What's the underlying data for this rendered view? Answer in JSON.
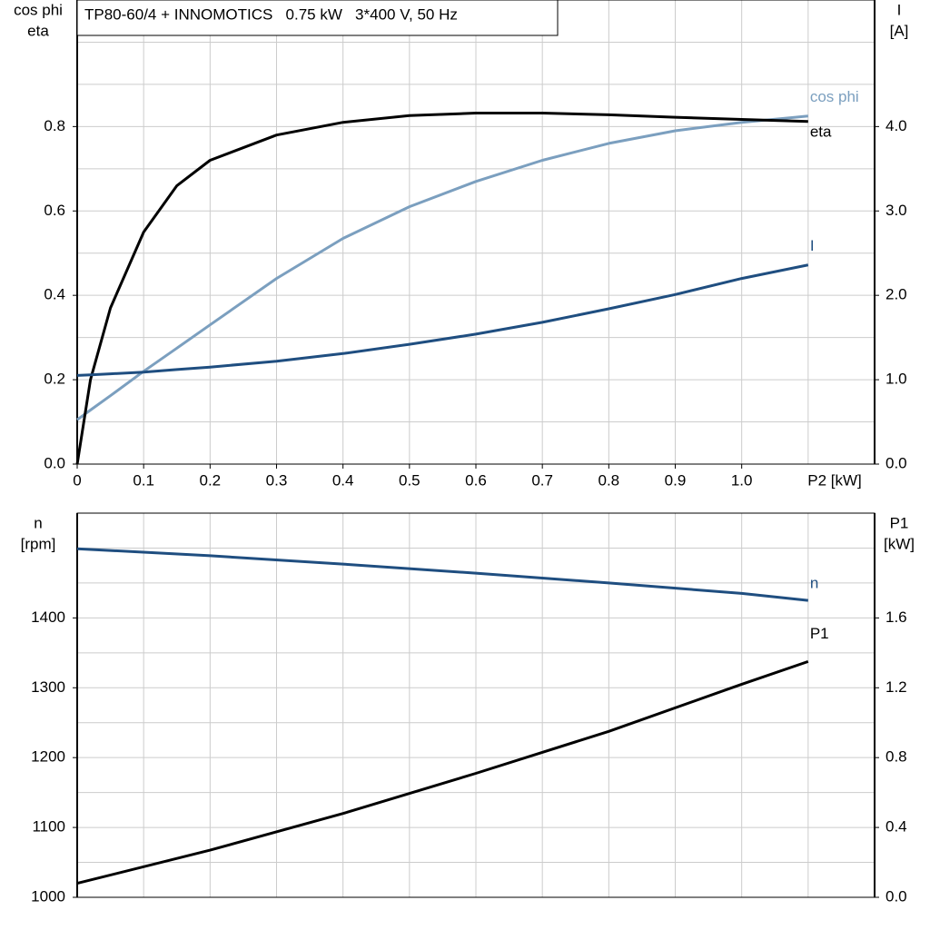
{
  "chart_data": [
    {
      "type": "line",
      "title": "TP80-60/4 + INNOMOTICS   0.75 kW   3*400 V, 50 Hz",
      "xlabel": "P2 [kW]",
      "ylabel": [
        "cos phi",
        "eta"
      ],
      "y2label": [
        "I",
        "[A]"
      ],
      "xlim": [
        0,
        1.2
      ],
      "xticks": [
        0,
        0.1,
        0.2,
        0.3,
        0.4,
        0.5,
        0.6,
        0.7,
        0.8,
        0.9,
        {
          "value": 1,
          "label": "1.0"
        }
      ],
      "xgrid": [
        0.1,
        0.2,
        0.3,
        0.4,
        0.5,
        0.6,
        0.7,
        0.8,
        0.9,
        1,
        1.1
      ],
      "ylim": [
        0,
        1.1
      ],
      "yticks": [
        {
          "value": 0,
          "label": "0.0"
        },
        0.2,
        0.4,
        0.6,
        0.8
      ],
      "ygrid": [
        0.1,
        0.3,
        0.5,
        0.7,
        0.9,
        1.0
      ],
      "y2lim": [
        0,
        5.5
      ],
      "y2ticks": [
        {
          "value": 0,
          "label": "0.0"
        },
        {
          "value": 1,
          "label": "1.0"
        },
        {
          "value": 2,
          "label": "2.0"
        },
        {
          "value": 3,
          "label": "3.0"
        },
        {
          "value": 4,
          "label": "4.0"
        }
      ],
      "grid": true,
      "x": [
        0,
        0.02,
        0.05,
        0.1,
        0.15,
        0.2,
        0.3,
        0.4,
        0.5,
        0.6,
        0.7,
        0.8,
        0.9,
        1.0,
        1.1
      ],
      "series": [
        {
          "name": "cos phi",
          "color": "#7b9fbf",
          "values": [
            0.105,
            0.128,
            0.162,
            0.22,
            0.275,
            0.33,
            0.44,
            0.535,
            0.61,
            0.67,
            0.72,
            0.76,
            0.79,
            0.81,
            0.825
          ]
        },
        {
          "name": "eta",
          "color": "#000000",
          "values": [
            0,
            0.2,
            0.37,
            0.55,
            0.66,
            0.72,
            0.78,
            0.81,
            0.826,
            0.832,
            0.832,
            0.828,
            0.822,
            0.817,
            0.812
          ]
        },
        {
          "name": "I",
          "color": "#1f4e80",
          "axis": "y2",
          "values": [
            1.05,
            1.058,
            1.07,
            1.09,
            1.12,
            1.15,
            1.22,
            1.31,
            1.42,
            1.54,
            1.68,
            1.84,
            2.01,
            2.2,
            2.36
          ]
        }
      ]
    },
    {
      "type": "line",
      "ylabel": [
        "n",
        "[rpm]"
      ],
      "y2label": [
        "P1",
        "[kW]"
      ],
      "xlim": [
        0,
        1.2
      ],
      "xgrid": [
        0.1,
        0.2,
        0.3,
        0.4,
        0.5,
        0.6,
        0.7,
        0.8,
        0.9,
        1,
        1.1
      ],
      "ylim": [
        1000,
        1550
      ],
      "yticks": [
        1000,
        1100,
        1200,
        1300,
        1400
      ],
      "ygrid": [
        1050,
        1150,
        1250,
        1350,
        1450,
        1500
      ],
      "y2lim": [
        0,
        2.2
      ],
      "y2ticks": [
        {
          "value": 0,
          "label": "0.0"
        },
        0.4,
        0.8,
        1.2,
        1.6
      ],
      "grid": true,
      "x": [
        0,
        0.2,
        0.4,
        0.6,
        0.8,
        1.0,
        1.1
      ],
      "series": [
        {
          "name": "n",
          "color": "#1f4e80",
          "values": [
            1499,
            1489,
            1477,
            1464,
            1450,
            1435,
            1425
          ]
        },
        {
          "name": "P1",
          "color": "#000000",
          "axis": "y2",
          "values": [
            0.08,
            0.27,
            0.48,
            0.71,
            0.95,
            1.22,
            1.35
          ]
        }
      ]
    }
  ]
}
